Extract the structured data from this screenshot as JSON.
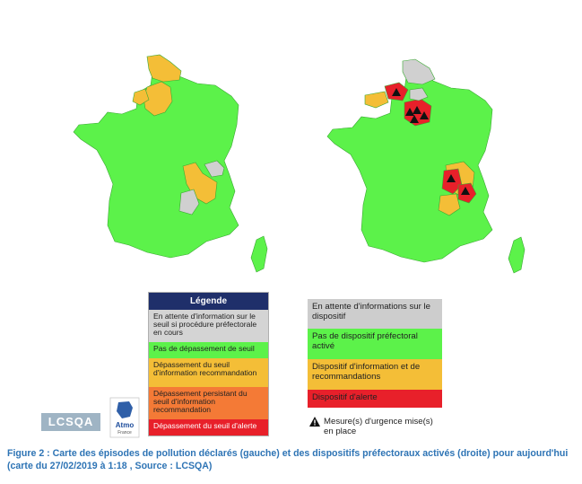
{
  "legend_left": {
    "title": "Légende",
    "items": [
      {
        "label": "En attente d'information sur le seuil si procédure préfectorale en cours",
        "color": "#d4d4d4"
      },
      {
        "label": "Pas de dépassement de seuil",
        "color": "#5cf24a"
      },
      {
        "label": "Dépassement du seuil d'information recommandation",
        "color": "#f4be37"
      },
      {
        "label": "Dépassement persistant du seuil d'information recommandation",
        "color": "#f47a36"
      },
      {
        "label": "Dépassement du seuil d'alerte",
        "color": "#e8202a"
      }
    ]
  },
  "legend_right": {
    "items": [
      {
        "label": "En attente d'informations sur le dispositif",
        "color": "#cdcdcd"
      },
      {
        "label": "Pas de dispositif préfectoral activé",
        "color": "#5cf24a"
      },
      {
        "label": "Dispositif d'information et de recommandations",
        "color": "#f4be37"
      },
      {
        "label": "Dispositif d'alerte",
        "color": "#e8202a"
      }
    ],
    "urgence_label": "Mesure(s) d'urgence mise(s) en place"
  },
  "logos": {
    "lcsqa": "LCSQA",
    "atmo": "Atmo",
    "atmo_sub": "France"
  },
  "caption": "Figure 2 : Carte des épisodes de pollution déclarés (gauche) et des dispositifs préfectoraux activés (droite) pour aujourd'hui (carte du 27/02/2019 à 1:18 , Source : LCSQA)"
}
